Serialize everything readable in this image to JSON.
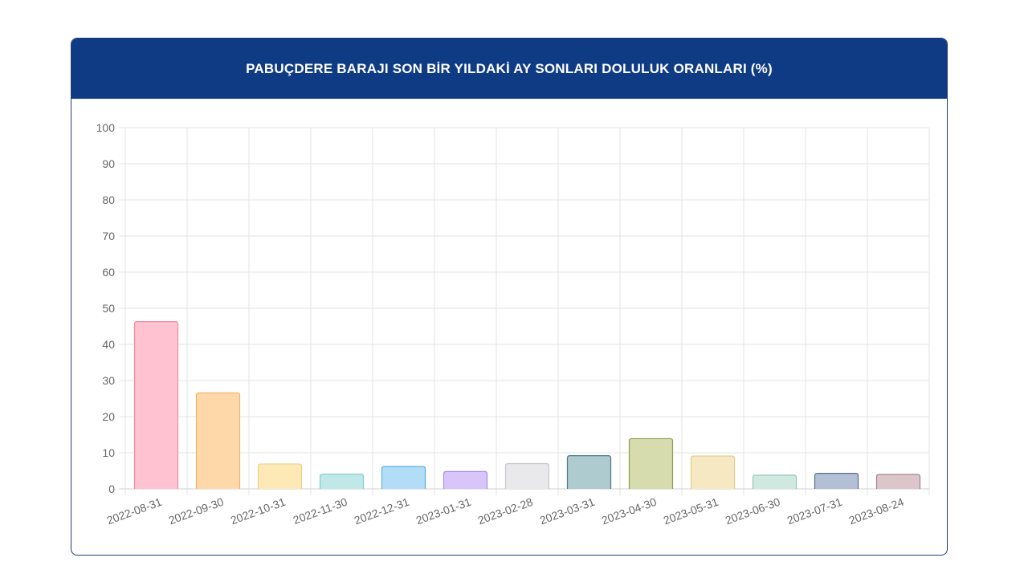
{
  "header": {
    "title": "PABUÇDERE BARAJI SON BİR YILDAKİ AY SONLARI DOLULUK ORANLARI (%)"
  },
  "chart_data": {
    "type": "bar",
    "title": "PABUÇDERE BARAJI SON BİR YILDAKİ AY SONLARI DOLULUK ORANLARI (%)",
    "xlabel": "",
    "ylabel": "",
    "ylim": [
      0,
      100
    ],
    "yticks": [
      0,
      10,
      20,
      30,
      40,
      50,
      60,
      70,
      80,
      90,
      100
    ],
    "grid": true,
    "legend": "none",
    "categories": [
      "2022-08-31",
      "2022-09-30",
      "2022-10-31",
      "2022-11-30",
      "2022-12-31",
      "2023-01-31",
      "2023-02-28",
      "2023-03-31",
      "2023-04-30",
      "2023-05-31",
      "2023-06-30",
      "2023-07-31",
      "2023-08-24"
    ],
    "values": [
      46.3,
      26.6,
      6.9,
      4.1,
      6.2,
      4.8,
      7.0,
      9.2,
      13.9,
      9.1,
      3.8,
      4.3,
      4.0
    ],
    "colors": [
      {
        "fill": "#ffc2d0",
        "stroke": "#f28aa3"
      },
      {
        "fill": "#ffd8aa",
        "stroke": "#f0b46a"
      },
      {
        "fill": "#fde9b5",
        "stroke": "#ecd088"
      },
      {
        "fill": "#bfe8e6",
        "stroke": "#7fcfcb"
      },
      {
        "fill": "#b3dcf7",
        "stroke": "#5eaee4"
      },
      {
        "fill": "#d8c6fb",
        "stroke": "#a98ef0"
      },
      {
        "fill": "#e9e9ec",
        "stroke": "#c6c6cc"
      },
      {
        "fill": "#aecbcf",
        "stroke": "#4e7a86"
      },
      {
        "fill": "#d6dcad",
        "stroke": "#8f9a4e"
      },
      {
        "fill": "#f7e8c4",
        "stroke": "#e3cc8a"
      },
      {
        "fill": "#cfe9e0",
        "stroke": "#93c9b6"
      },
      {
        "fill": "#b3bfd4",
        "stroke": "#5a6e93"
      },
      {
        "fill": "#dcc6cc",
        "stroke": "#a6828c"
      }
    ]
  }
}
